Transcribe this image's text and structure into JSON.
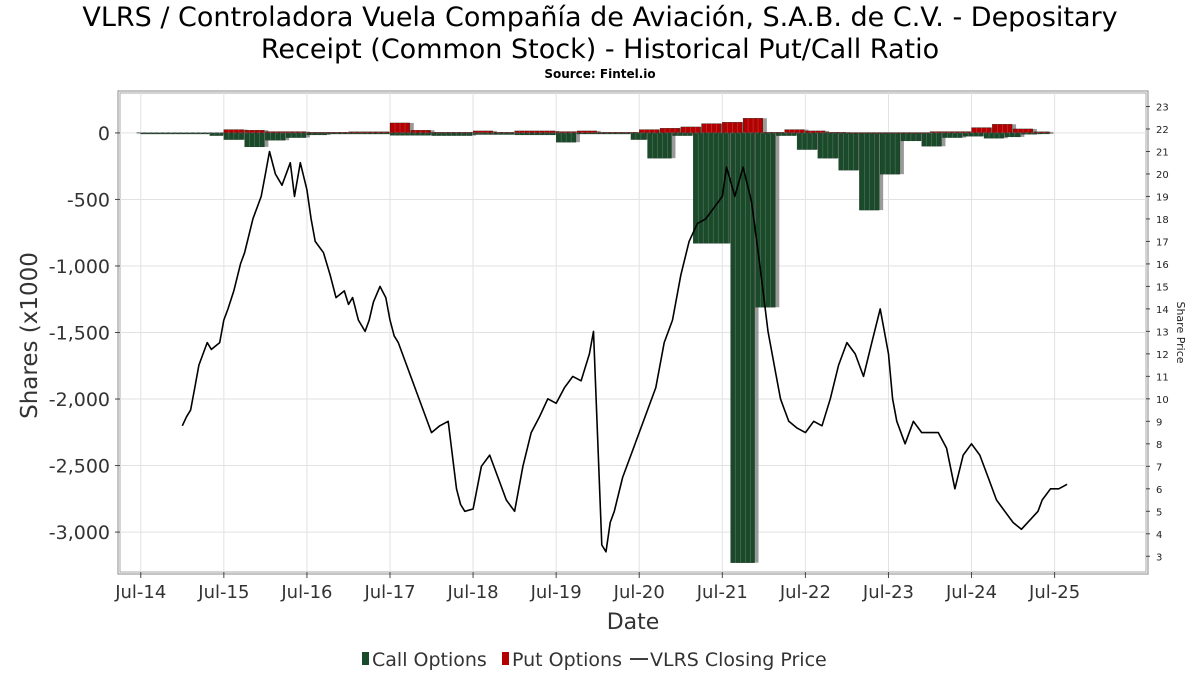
{
  "chart_data": {
    "type": "bar",
    "title_line1": "VLRS / Controladora Vuela Compañía de Aviación, S.A.B. de C.V. - Depositary",
    "title_line2": "Receipt (Common Stock) - Historical Put/Call Ratio",
    "subtitle": "Source: Fintel.io",
    "xlabel": "Date",
    "ylabel": "Shares (x1000",
    "y2label": "Share Price",
    "ylim": [
      -3300,
      300
    ],
    "y2lim": [
      2.3,
      23.6
    ],
    "xlim": [
      2014.25,
      2026.6
    ],
    "yticks": [
      {
        "v": 0,
        "label": "0"
      },
      {
        "v": -500,
        "label": "-500"
      },
      {
        "v": -1000,
        "label": "-1,000"
      },
      {
        "v": -1500,
        "label": "-1,500"
      },
      {
        "v": -2000,
        "label": "-2,000"
      },
      {
        "v": -2500,
        "label": "-2,500"
      },
      {
        "v": -3000,
        "label": "-3,000"
      }
    ],
    "y2ticks": [
      3,
      4,
      5,
      6,
      7,
      8,
      9,
      10,
      11,
      12,
      13,
      14,
      15,
      16,
      17,
      18,
      19,
      20,
      21,
      22,
      23
    ],
    "xticks": [
      {
        "v": 2014.5,
        "label": "Jul-14"
      },
      {
        "v": 2015.5,
        "label": "Jul-15"
      },
      {
        "v": 2016.5,
        "label": "Jul-16"
      },
      {
        "v": 2017.5,
        "label": "Jul-17"
      },
      {
        "v": 2018.5,
        "label": "Jul-18"
      },
      {
        "v": 2019.5,
        "label": "Jul-19"
      },
      {
        "v": 2020.5,
        "label": "Jul-20"
      },
      {
        "v": 2021.5,
        "label": "Jul-21"
      },
      {
        "v": 2022.5,
        "label": "Jul-22"
      },
      {
        "v": 2023.5,
        "label": "Jul-23"
      },
      {
        "v": 2024.5,
        "label": "Jul-24"
      },
      {
        "v": 2025.5,
        "label": "Jul-25"
      }
    ],
    "grid": true,
    "legend_position": "bottom",
    "legend": [
      {
        "label": "Call Options",
        "kind": "box",
        "color": "#1a4a2a"
      },
      {
        "label": "Put Options",
        "kind": "box",
        "color": "#b30000"
      },
      {
        "label": "VLRS Closing Price",
        "kind": "line",
        "color": "#000000"
      }
    ],
    "colors": {
      "calls": "#1a4a2a",
      "puts": "#b30000",
      "price": "#000000"
    },
    "call_series": [
      {
        "x0": 2014.5,
        "x1": 2015.33,
        "v": -8
      },
      {
        "x0": 2015.33,
        "x1": 2015.5,
        "v": -20
      },
      {
        "x0": 2015.5,
        "x1": 2015.75,
        "v": -50
      },
      {
        "x0": 2015.75,
        "x1": 2016.0,
        "v": -105
      },
      {
        "x0": 2016.0,
        "x1": 2016.25,
        "v": -55
      },
      {
        "x0": 2016.25,
        "x1": 2016.5,
        "v": -35
      },
      {
        "x0": 2016.5,
        "x1": 2016.75,
        "v": -15
      },
      {
        "x0": 2016.75,
        "x1": 2017.5,
        "v": -8
      },
      {
        "x0": 2017.5,
        "x1": 2018.0,
        "v": -18
      },
      {
        "x0": 2018.0,
        "x1": 2018.5,
        "v": -20
      },
      {
        "x0": 2018.5,
        "x1": 2019.0,
        "v": -12
      },
      {
        "x0": 2019.0,
        "x1": 2019.5,
        "v": -15
      },
      {
        "x0": 2019.5,
        "x1": 2019.75,
        "v": -70
      },
      {
        "x0": 2019.75,
        "x1": 2020.4,
        "v": -8
      },
      {
        "x0": 2020.4,
        "x1": 2020.6,
        "v": -50
      },
      {
        "x0": 2020.6,
        "x1": 2020.9,
        "v": -190
      },
      {
        "x0": 2020.9,
        "x1": 2021.15,
        "v": -20
      },
      {
        "x0": 2021.15,
        "x1": 2021.6,
        "v": -830
      },
      {
        "x0": 2021.6,
        "x1": 2021.9,
        "v": -3230
      },
      {
        "x0": 2021.9,
        "x1": 2022.15,
        "v": -1310
      },
      {
        "x0": 2022.15,
        "x1": 2022.4,
        "v": -20
      },
      {
        "x0": 2022.4,
        "x1": 2022.65,
        "v": -125
      },
      {
        "x0": 2022.65,
        "x1": 2022.9,
        "v": -190
      },
      {
        "x0": 2022.9,
        "x1": 2023.15,
        "v": -280
      },
      {
        "x0": 2023.15,
        "x1": 2023.4,
        "v": -580
      },
      {
        "x0": 2023.4,
        "x1": 2023.65,
        "v": -310
      },
      {
        "x0": 2023.65,
        "x1": 2023.9,
        "v": -60
      },
      {
        "x0": 2023.9,
        "x1": 2024.15,
        "v": -100
      },
      {
        "x0": 2024.15,
        "x1": 2024.4,
        "v": -35
      },
      {
        "x0": 2024.4,
        "x1": 2024.65,
        "v": -25
      },
      {
        "x0": 2024.65,
        "x1": 2024.9,
        "v": -40
      },
      {
        "x0": 2024.9,
        "x1": 2025.1,
        "v": -30
      },
      {
        "x0": 2025.1,
        "x1": 2025.3,
        "v": -10
      },
      {
        "x0": 2025.3,
        "x1": 2025.45,
        "v": -5
      }
    ],
    "put_series": [
      {
        "x0": 2015.5,
        "x1": 2015.75,
        "v": 25
      },
      {
        "x0": 2015.75,
        "x1": 2016.0,
        "v": 20
      },
      {
        "x0": 2016.0,
        "x1": 2016.5,
        "v": 10
      },
      {
        "x0": 2016.5,
        "x1": 2017.0,
        "v": 5
      },
      {
        "x0": 2017.0,
        "x1": 2017.5,
        "v": 8
      },
      {
        "x0": 2017.5,
        "x1": 2017.75,
        "v": 75
      },
      {
        "x0": 2017.75,
        "x1": 2018.0,
        "v": 20
      },
      {
        "x0": 2018.0,
        "x1": 2018.5,
        "v": 5
      },
      {
        "x0": 2018.5,
        "x1": 2018.75,
        "v": 15
      },
      {
        "x0": 2018.75,
        "x1": 2019.0,
        "v": 5
      },
      {
        "x0": 2019.0,
        "x1": 2019.5,
        "v": 15
      },
      {
        "x0": 2019.5,
        "x1": 2019.75,
        "v": 10
      },
      {
        "x0": 2019.75,
        "x1": 2020.0,
        "v": 15
      },
      {
        "x0": 2020.0,
        "x1": 2020.5,
        "v": 5
      },
      {
        "x0": 2020.5,
        "x1": 2020.75,
        "v": 25
      },
      {
        "x0": 2020.75,
        "x1": 2021.0,
        "v": 35
      },
      {
        "x0": 2021.0,
        "x1": 2021.25,
        "v": 45
      },
      {
        "x0": 2021.25,
        "x1": 2021.5,
        "v": 70
      },
      {
        "x0": 2021.5,
        "x1": 2021.75,
        "v": 80
      },
      {
        "x0": 2021.75,
        "x1": 2022.0,
        "v": 110
      },
      {
        "x0": 2022.0,
        "x1": 2022.25,
        "v": 5
      },
      {
        "x0": 2022.25,
        "x1": 2022.5,
        "v": 25
      },
      {
        "x0": 2022.5,
        "x1": 2022.75,
        "v": 15
      },
      {
        "x0": 2022.75,
        "x1": 2023.0,
        "v": 5
      },
      {
        "x0": 2023.0,
        "x1": 2024.0,
        "v": 3
      },
      {
        "x0": 2024.0,
        "x1": 2024.5,
        "v": 10
      },
      {
        "x0": 2024.5,
        "x1": 2024.75,
        "v": 40
      },
      {
        "x0": 2024.75,
        "x1": 2025.0,
        "v": 65
      },
      {
        "x0": 2025.0,
        "x1": 2025.25,
        "v": 30
      },
      {
        "x0": 2025.25,
        "x1": 2025.45,
        "v": 8
      }
    ],
    "price_series": {
      "x": [
        2015.0,
        2015.05,
        2015.1,
        2015.15,
        2015.2,
        2015.3,
        2015.35,
        2015.45,
        2015.5,
        2015.55,
        2015.62,
        2015.7,
        2015.75,
        2015.85,
        2015.95,
        2016.0,
        2016.05,
        2016.12,
        2016.2,
        2016.3,
        2016.35,
        2016.42,
        2016.5,
        2016.55,
        2016.6,
        2016.7,
        2016.78,
        2016.85,
        2016.95,
        2017.0,
        2017.05,
        2017.12,
        2017.2,
        2017.25,
        2017.3,
        2017.38,
        2017.45,
        2017.5,
        2017.55,
        2017.6,
        2017.7,
        2017.8,
        2017.9,
        2018.0,
        2018.1,
        2018.2,
        2018.3,
        2018.35,
        2018.4,
        2018.5,
        2018.6,
        2018.7,
        2018.8,
        2018.9,
        2019.0,
        2019.1,
        2019.2,
        2019.3,
        2019.4,
        2019.5,
        2019.6,
        2019.7,
        2019.8,
        2019.9,
        2019.95,
        2020.05,
        2020.1,
        2020.15,
        2020.2,
        2020.3,
        2020.4,
        2020.5,
        2020.6,
        2020.7,
        2020.8,
        2020.9,
        2021.0,
        2021.1,
        2021.2,
        2021.3,
        2021.4,
        2021.5,
        2021.55,
        2021.65,
        2021.75,
        2021.85,
        2021.95,
        2022.05,
        2022.15,
        2022.2,
        2022.25,
        2022.3,
        2022.4,
        2022.5,
        2022.6,
        2022.7,
        2022.8,
        2022.9,
        2023.0,
        2023.1,
        2023.2,
        2023.3,
        2023.4,
        2023.5,
        2023.55,
        2023.6,
        2023.7,
        2023.8,
        2023.9,
        2024.0,
        2024.1,
        2024.2,
        2024.3,
        2024.4,
        2024.5,
        2024.6,
        2024.7,
        2024.8,
        2024.9,
        2025.0,
        2025.1,
        2025.2,
        2025.3,
        2025.35,
        2025.45,
        2025.55,
        2025.65
      ],
      "y": [
        8.8,
        9.2,
        9.5,
        10.5,
        11.5,
        12.5,
        12.2,
        12.5,
        13.5,
        14.0,
        14.8,
        16.0,
        16.5,
        18.0,
        19.0,
        20.0,
        21.0,
        20.0,
        19.5,
        20.5,
        19.0,
        20.5,
        19.3,
        18.0,
        17.0,
        16.5,
        15.5,
        14.5,
        14.8,
        14.2,
        14.5,
        13.5,
        13.0,
        13.5,
        14.3,
        15.0,
        14.5,
        13.5,
        12.8,
        12.5,
        11.5,
        10.5,
        9.5,
        8.5,
        8.8,
        9.0,
        6.0,
        5.3,
        5.0,
        5.1,
        7.0,
        7.5,
        6.5,
        5.5,
        5.0,
        7.0,
        8.5,
        9.2,
        10.0,
        9.8,
        10.5,
        11.0,
        10.8,
        12.0,
        13.0,
        3.5,
        3.2,
        4.5,
        5.0,
        6.5,
        7.5,
        8.5,
        9.5,
        10.5,
        12.5,
        13.5,
        15.5,
        17.0,
        17.8,
        18.0,
        18.5,
        19.0,
        20.3,
        19.0,
        20.3,
        18.8,
        16.0,
        13.0,
        11.0,
        10.0,
        9.5,
        9.0,
        8.7,
        8.5,
        9.0,
        8.8,
        10.0,
        11.5,
        12.5,
        12.0,
        11.0,
        12.5,
        14.0,
        12.0,
        10.0,
        9.0,
        8.0,
        9.0,
        8.5,
        8.5,
        8.5,
        7.8,
        6.0,
        7.5,
        8.0,
        7.5,
        6.5,
        5.5,
        5.0,
        4.5,
        4.2,
        4.6,
        5.0,
        5.5,
        6.0,
        6.0,
        6.2
      ]
    }
  }
}
